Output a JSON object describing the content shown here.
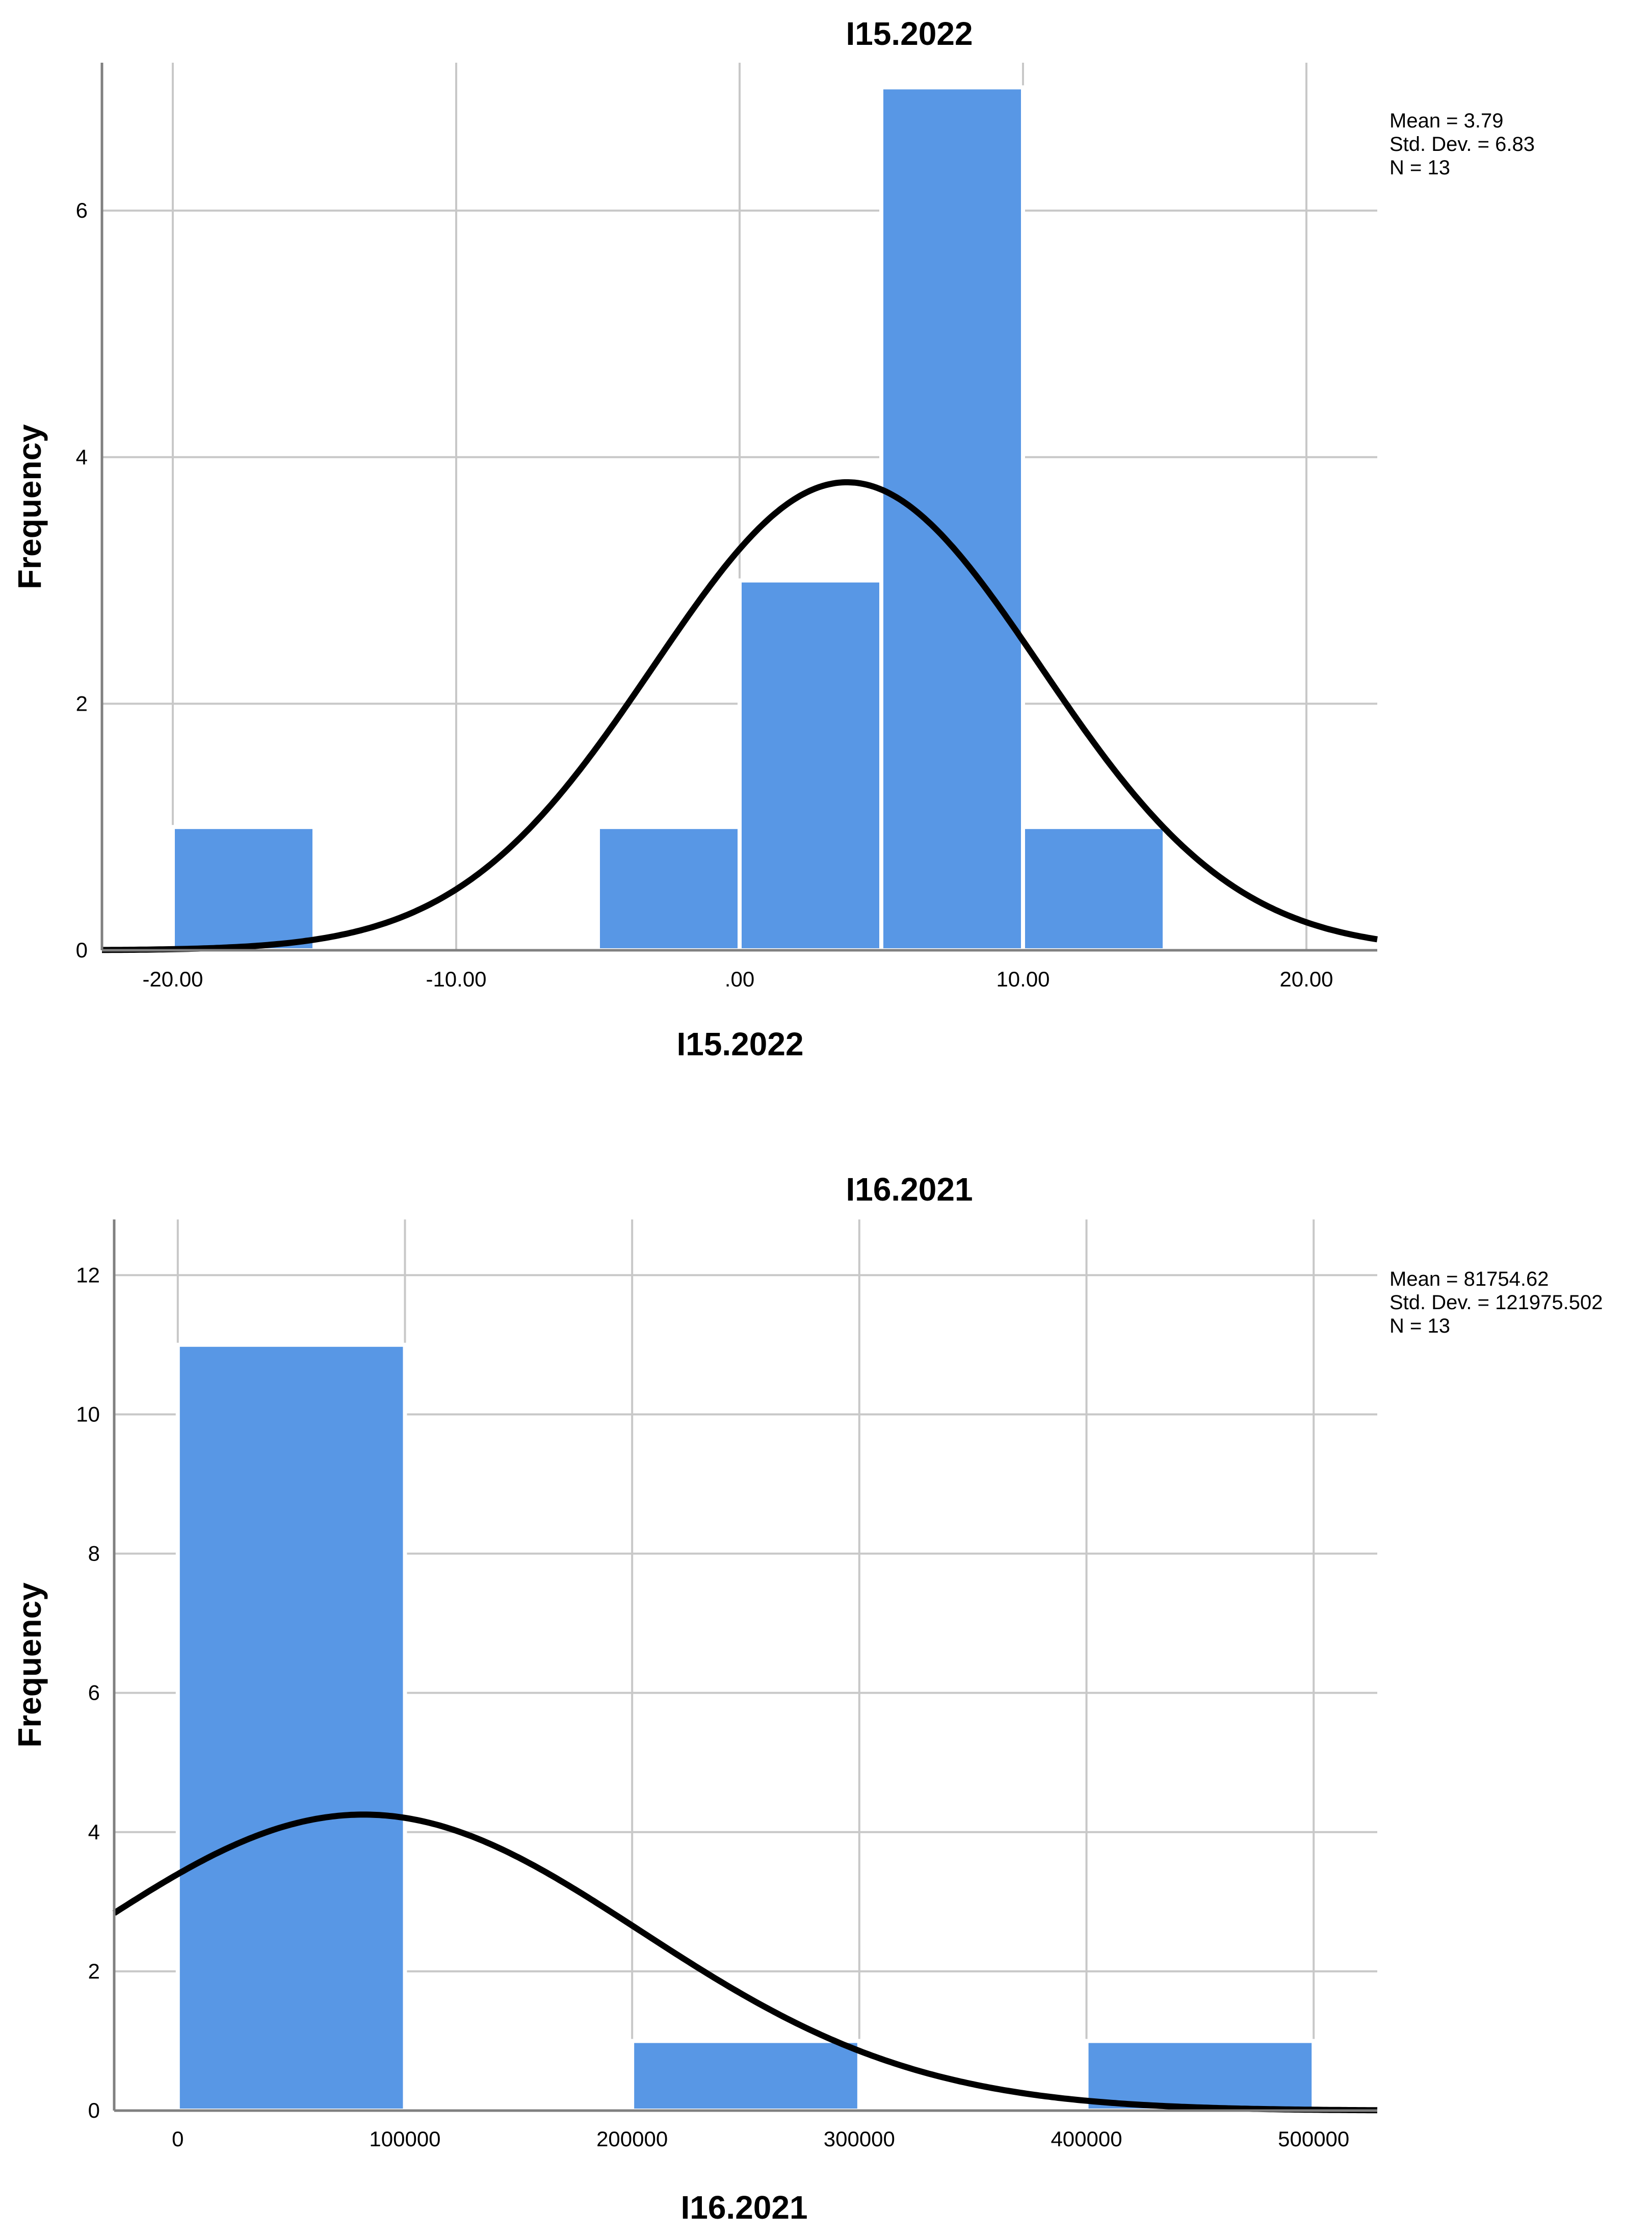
{
  "chart_data": [
    {
      "type": "histogram",
      "title": "I15.2022",
      "xlabel": "I15.2022",
      "ylabel": "Frequency",
      "xlim": [
        -22.5,
        22.5
      ],
      "ylim": [
        0,
        7.2
      ],
      "x_ticks": [
        {
          "value": -20,
          "label": "-20.00"
        },
        {
          "value": -10,
          "label": "-10.00"
        },
        {
          "value": 0,
          "label": ".00"
        },
        {
          "value": 10,
          "label": "10.00"
        },
        {
          "value": 20,
          "label": "20.00"
        }
      ],
      "y_ticks": [
        {
          "value": 0,
          "label": "0"
        },
        {
          "value": 2,
          "label": "2"
        },
        {
          "value": 4,
          "label": "4"
        },
        {
          "value": 6,
          "label": "6"
        }
      ],
      "bins": [
        {
          "start": -20,
          "end": -15,
          "count": 1
        },
        {
          "start": -5,
          "end": 0,
          "count": 1
        },
        {
          "start": 0,
          "end": 5,
          "count": 3
        },
        {
          "start": 5,
          "end": 10,
          "count": 7
        },
        {
          "start": 10,
          "end": 15,
          "count": 1
        }
      ],
      "normal_curve": {
        "mean": 3.79,
        "std": 6.83,
        "n": 13,
        "bin_width": 5
      },
      "stats": [
        "Mean = 3.79",
        "Std. Dev. = 6.83",
        "N = 13"
      ],
      "grid": true
    },
    {
      "type": "histogram",
      "title": "I16.2021",
      "xlabel": "I16.2021",
      "ylabel": "Frequency",
      "xlim": [
        -28000,
        528000
      ],
      "ylim": [
        0,
        12.8
      ],
      "x_ticks": [
        {
          "value": 0,
          "label": "0"
        },
        {
          "value": 100000,
          "label": "100000"
        },
        {
          "value": 200000,
          "label": "200000"
        },
        {
          "value": 300000,
          "label": "300000"
        },
        {
          "value": 400000,
          "label": "400000"
        },
        {
          "value": 500000,
          "label": "500000"
        }
      ],
      "y_ticks": [
        {
          "value": 0,
          "label": "0"
        },
        {
          "value": 2,
          "label": "2"
        },
        {
          "value": 4,
          "label": "4"
        },
        {
          "value": 6,
          "label": "6"
        },
        {
          "value": 8,
          "label": "8"
        },
        {
          "value": 10,
          "label": "10"
        },
        {
          "value": 12,
          "label": "12"
        }
      ],
      "bins": [
        {
          "start": 0,
          "end": 100000,
          "count": 11
        },
        {
          "start": 200000,
          "end": 300000,
          "count": 1
        },
        {
          "start": 400000,
          "end": 500000,
          "count": 1
        }
      ],
      "normal_curve": {
        "mean": 81754.62,
        "std": 121975.502,
        "n": 13,
        "bin_width": 100000
      },
      "stats": [
        "Mean = 81754.62",
        "Std. Dev. = 121975.502",
        "N = 13"
      ],
      "grid": true
    }
  ]
}
